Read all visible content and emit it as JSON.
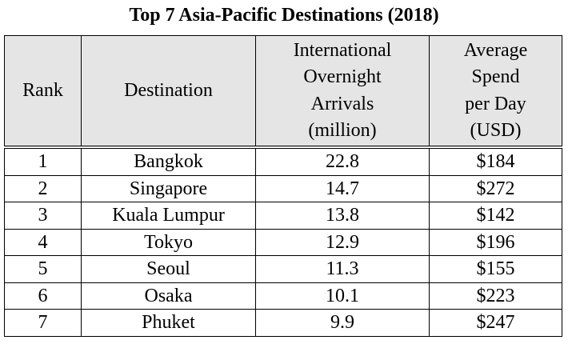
{
  "title": "Top 7 Asia-Pacific Destinations (2018)",
  "headers": {
    "rank": "Rank",
    "destination": "Destination",
    "arrivals": [
      "International",
      "Overnight",
      "Arrivals",
      "(million)"
    ],
    "spend": [
      "Average",
      "Spend",
      "per Day",
      "(USD)"
    ]
  },
  "rows": [
    {
      "rank": "1",
      "destination": "Bangkok",
      "arrivals": "22.8",
      "spend": "$184"
    },
    {
      "rank": "2",
      "destination": "Singapore",
      "arrivals": "14.7",
      "spend": "$272"
    },
    {
      "rank": "3",
      "destination": "Kuala Lumpur",
      "arrivals": "13.8",
      "spend": "$142"
    },
    {
      "rank": "4",
      "destination": "Tokyo",
      "arrivals": "12.9",
      "spend": "$196"
    },
    {
      "rank": "5",
      "destination": "Seoul",
      "arrivals": "11.3",
      "spend": "$155"
    },
    {
      "rank": "6",
      "destination": "Osaka",
      "arrivals": "10.1",
      "spend": "$223"
    },
    {
      "rank": "7",
      "destination": "Phuket",
      "arrivals": "9.9",
      "spend": "$247"
    }
  ]
}
